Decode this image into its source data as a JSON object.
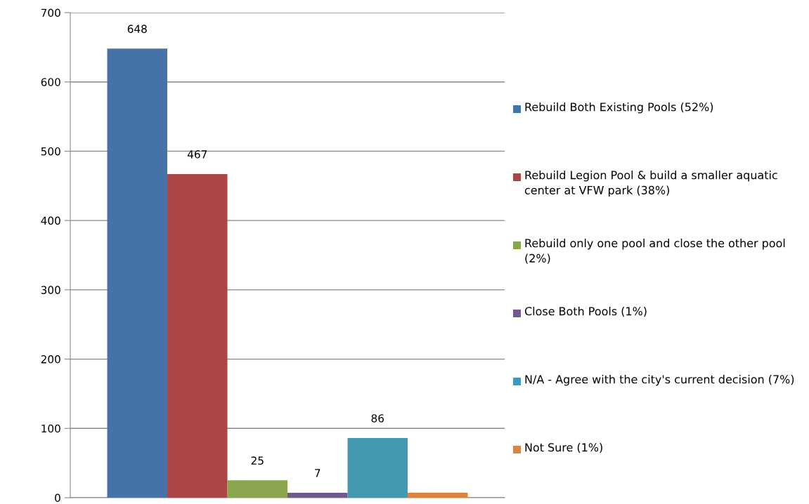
{
  "chart_data": {
    "type": "bar",
    "categories": [
      null
    ],
    "series": [
      {
        "name": "Rebuild Both Existing Pools (52%)",
        "color": "#4572a7",
        "values": [
          648
        ],
        "value_labels": [
          "648"
        ]
      },
      {
        "name": "Rebuild Legion Pool & build a smaller aquatic center at VFW park (38%)",
        "color": "#aa4643",
        "values": [
          467
        ],
        "value_labels": [
          "467"
        ]
      },
      {
        "name": "Rebuild only one pool and close the other pool (2%)",
        "color": "#89a54e",
        "values": [
          25
        ],
        "value_labels": [
          "25"
        ]
      },
      {
        "name": "Close Both Pools (1%)",
        "color": "#71588f",
        "values": [
          7
        ],
        "value_labels": [
          "7"
        ]
      },
      {
        "name": "N/A - Agree with the city's current decision (7%)",
        "color": "#4198af",
        "values": [
          86
        ],
        "value_labels": [
          "86"
        ]
      },
      {
        "name": "Not Sure (1%)",
        "color": "#db843d",
        "values": [
          7
        ],
        "value_labels": [
          null
        ]
      }
    ],
    "ylim": [
      0,
      700
    ],
    "yticks": [
      0,
      100,
      200,
      300,
      400,
      500,
      600,
      700
    ],
    "grid": "y",
    "legend": "right"
  }
}
